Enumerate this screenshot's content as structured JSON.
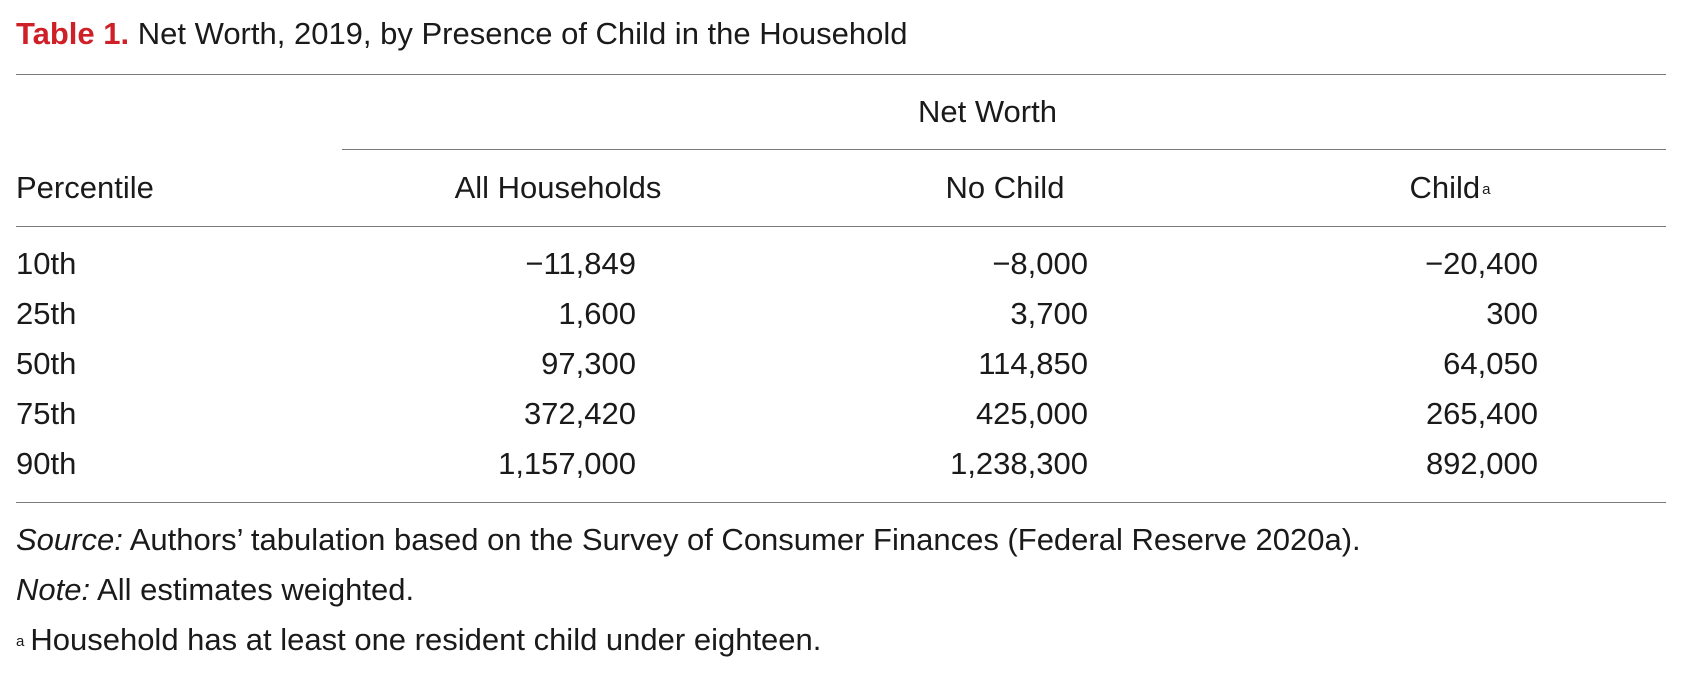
{
  "table": {
    "label": "Table 1.",
    "title": "Net Worth, 2019, by Presence of Child in the Household",
    "spanner": "Net Worth",
    "columns": {
      "percentile": "Percentile",
      "all": "All Households",
      "no_child": "No Child",
      "child": "Child",
      "child_marker": "a"
    },
    "rows": [
      {
        "percentile": "10th",
        "all": "−11,849",
        "no_child": "−8,000",
        "child": "−20,400"
      },
      {
        "percentile": "25th",
        "all": "1,600",
        "no_child": "3,700",
        "child": "300"
      },
      {
        "percentile": "50th",
        "all": "97,300",
        "no_child": "114,850",
        "child": "64,050"
      },
      {
        "percentile": "75th",
        "all": "372,420",
        "no_child": "425,000",
        "child": "265,400"
      },
      {
        "percentile": "90th",
        "all": "1,157,000",
        "no_child": "1,238,300",
        "child": "892,000"
      }
    ]
  },
  "notes": {
    "source_label": "Source:",
    "source_text": " Authors’ tabulation based on the Survey of Consumer Finances (Federal Reserve 2020a).",
    "note_label": "Note:",
    "note_text": " All estimates weighted.",
    "footnote_marker": "a",
    "footnote_text": "Household has at least one resident child under eighteen."
  },
  "colors": {
    "label_red": "#cf2027",
    "text": "#1a1a1a",
    "rule": "#7a7a7a"
  }
}
